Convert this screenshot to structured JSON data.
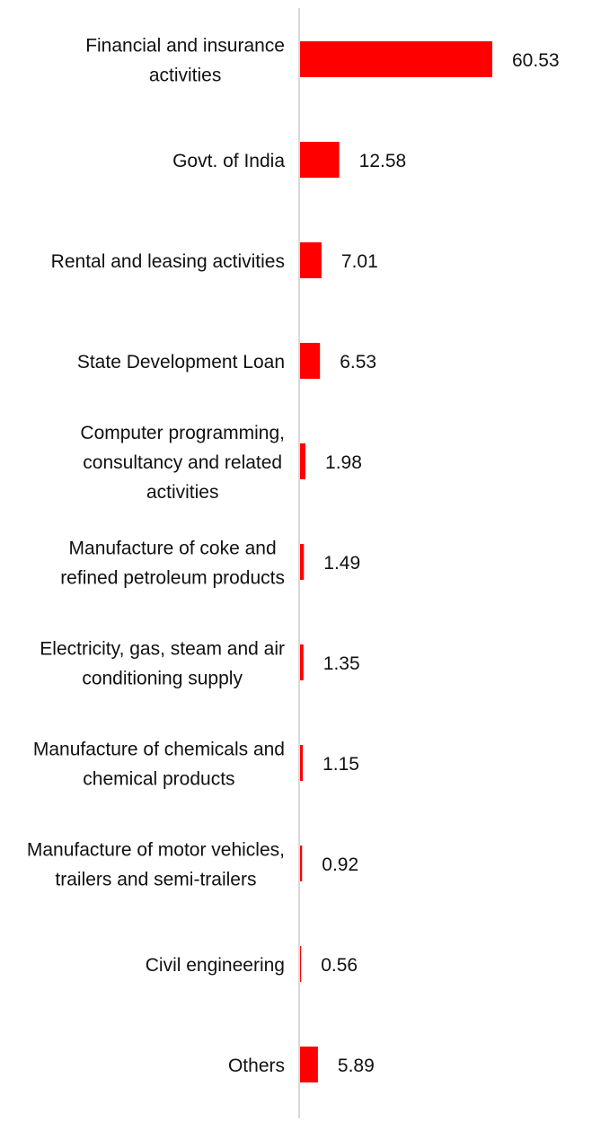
{
  "chart_data": {
    "type": "bar",
    "orientation": "horizontal",
    "title": "",
    "xlabel": "",
    "ylabel": "",
    "categories": [
      "Financial and insurance activities",
      "Govt. of India",
      "Rental and leasing activities",
      "State Development Loan",
      "Computer programming, consultancy and related activities",
      "Manufacture of coke and refined petroleum products",
      "Electricity, gas, steam and air conditioning supply",
      "Manufacture of chemicals and chemical products",
      "Manufacture of motor vehicles, trailers and semi-trailers",
      "Civil engineering",
      "Others"
    ],
    "values": [
      60.53,
      12.58,
      7.01,
      6.53,
      1.98,
      1.49,
      1.35,
      1.15,
      0.92,
      0.56,
      5.89
    ],
    "value_labels": [
      "60.53",
      "12.58",
      "7.01",
      "6.53",
      "1.98",
      "1.49",
      "1.35",
      "1.15",
      "0.92",
      "0.56",
      "5.89"
    ],
    "xlim": [
      0,
      60.53
    ],
    "grid": false,
    "legend": "none",
    "bar_color": "#ff0000",
    "axis_color": "#d9d9d9"
  }
}
